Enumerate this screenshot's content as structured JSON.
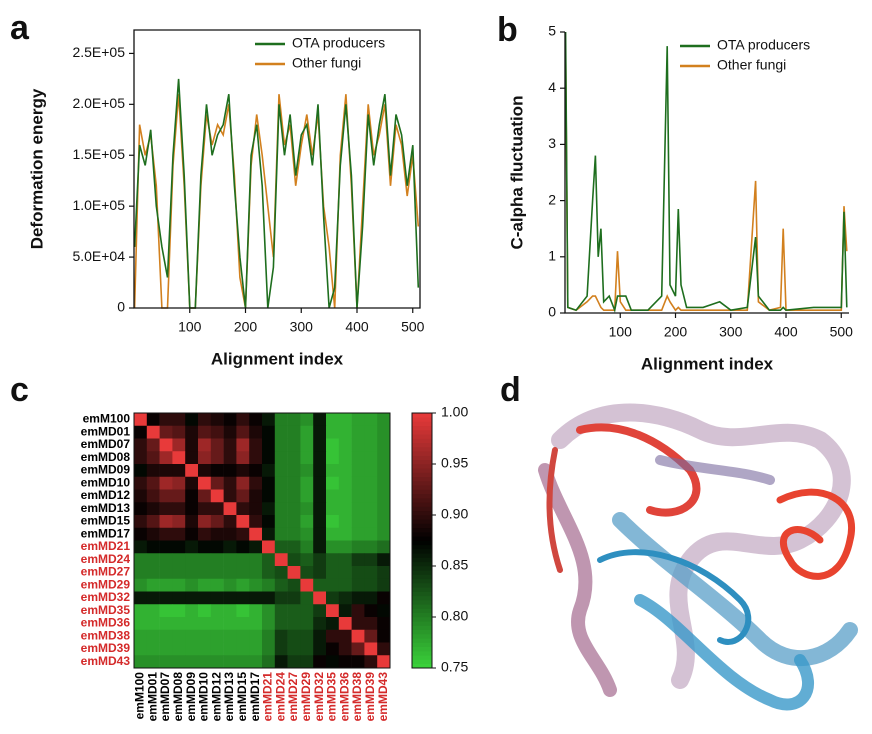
{
  "chart_data": [
    {
      "type": "line",
      "panel_label": "a",
      "ylabel": "Deformation energy",
      "xlabel": "Alignment index",
      "x": [
        1,
        10,
        20,
        30,
        40,
        50,
        60,
        70,
        80,
        90,
        100,
        110,
        120,
        130,
        140,
        150,
        160,
        170,
        180,
        190,
        200,
        210,
        220,
        230,
        240,
        250,
        260,
        270,
        280,
        290,
        300,
        310,
        320,
        330,
        340,
        350,
        360,
        370,
        380,
        390,
        400,
        410,
        420,
        430,
        440,
        450,
        460,
        470,
        480,
        490,
        500,
        510
      ],
      "series": [
        {
          "name": "OTA producers",
          "color": "#1e6e1e",
          "values": [
            60000,
            160000,
            140000,
            175000,
            100000,
            60000,
            30000,
            150000,
            225000,
            130000,
            0,
            0,
            130000,
            200000,
            150000,
            170000,
            180000,
            210000,
            120000,
            50000,
            0,
            150000,
            180000,
            120000,
            0,
            40000,
            200000,
            150000,
            190000,
            130000,
            170000,
            180000,
            140000,
            200000,
            90000,
            0,
            20000,
            140000,
            200000,
            130000,
            0,
            80000,
            190000,
            140000,
            180000,
            210000,
            130000,
            190000,
            170000,
            120000,
            160000,
            20000
          ]
        },
        {
          "name": "Other fungi",
          "color": "#d2801e",
          "values": [
            0,
            180000,
            150000,
            170000,
            120000,
            0,
            0,
            140000,
            210000,
            120000,
            0,
            0,
            120000,
            190000,
            160000,
            180000,
            170000,
            200000,
            130000,
            30000,
            0,
            140000,
            190000,
            150000,
            100000,
            50000,
            210000,
            160000,
            180000,
            120000,
            160000,
            190000,
            150000,
            190000,
            100000,
            60000,
            0,
            150000,
            210000,
            120000,
            0,
            100000,
            200000,
            150000,
            170000,
            200000,
            120000,
            180000,
            160000,
            110000,
            150000,
            80000
          ]
        }
      ],
      "xlim": [
        0,
        513
      ],
      "xticks": [
        100,
        200,
        300,
        400,
        500
      ],
      "ylim": [
        0,
        273000
      ],
      "yticks": [
        0,
        {
          "value": 50000,
          "label": "5.0E+04"
        },
        {
          "value": 100000,
          "label": "1.0E+05"
        },
        {
          "value": 150000,
          "label": "1.5E+05"
        },
        {
          "value": 200000,
          "label": "2.0E+05"
        },
        {
          "value": 250000,
          "label": "2.5E+05"
        }
      ],
      "legend": "top-right",
      "frame": true
    },
    {
      "type": "line",
      "panel_label": "b",
      "ylabel": "C-alpha fluctuation",
      "xlabel": "Alignment index",
      "x": [
        1,
        5,
        20,
        40,
        50,
        55,
        60,
        65,
        70,
        80,
        90,
        95,
        100,
        110,
        120,
        150,
        175,
        185,
        190,
        200,
        205,
        210,
        220,
        250,
        280,
        300,
        330,
        345,
        350,
        370,
        390,
        395,
        400,
        450,
        500,
        505,
        510
      ],
      "series": [
        {
          "name": "OTA producers",
          "color": "#1e6e1e",
          "values": [
            5,
            0.1,
            0.05,
            0.3,
            2.0,
            2.8,
            1.0,
            1.5,
            0.2,
            0.3,
            0.05,
            0.3,
            0.3,
            0.3,
            0.05,
            0.05,
            0.3,
            4.75,
            0.5,
            0.3,
            1.85,
            0.5,
            0.1,
            0.1,
            0.2,
            0.05,
            0.1,
            1.35,
            0.3,
            0.05,
            0.05,
            0.1,
            0.05,
            0.1,
            0.1,
            1.8,
            0.1
          ]
        },
        {
          "name": "Other fungi",
          "color": "#d2801e",
          "values": [
            4.7,
            0.1,
            0.05,
            0.2,
            0.3,
            0.3,
            0.2,
            0.1,
            0.05,
            0.05,
            0.05,
            1.1,
            0.2,
            0.05,
            0.05,
            0.05,
            0.05,
            0.3,
            0.2,
            0.05,
            0.1,
            0.05,
            0.05,
            0.05,
            0.05,
            0.05,
            0.05,
            2.35,
            0.2,
            0.05,
            0.1,
            1.5,
            0.05,
            0.05,
            0.05,
            1.9,
            1.1
          ]
        }
      ],
      "xlim": [
        0,
        514
      ],
      "xticks": [
        100,
        200,
        300,
        400,
        500
      ],
      "ylim": [
        0,
        5
      ],
      "yticks": [
        0,
        1,
        2,
        3,
        4,
        5
      ],
      "legend": "top-right",
      "frame": false
    },
    {
      "type": "heatmap",
      "panel_label": "c",
      "categories": [
        "emM100",
        "emMD01",
        "emMD07",
        "emMD08",
        "emMD09",
        "emMD10",
        "emMD12",
        "emMD13",
        "emMD15",
        "emMD17",
        "emMD21",
        "emMD24",
        "emMD27",
        "emMD29",
        "emMD32",
        "emMD35",
        "emMD36",
        "emMD38",
        "emMD39",
        "emMD43"
      ],
      "label_colors": [
        "#000000",
        "#000000",
        "#000000",
        "#000000",
        "#000000",
        "#000000",
        "#000000",
        "#000000",
        "#000000",
        "#000000",
        "#d42a2a",
        "#d42a2a",
        "#d42a2a",
        "#d42a2a",
        "#d42a2a",
        "#d42a2a",
        "#d42a2a",
        "#d42a2a",
        "#d42a2a",
        "#d42a2a"
      ],
      "values": [
        [
          1,
          0.88,
          0.9,
          0.9,
          0.87,
          0.9,
          0.89,
          0.88,
          0.9,
          0.88,
          0.86,
          0.8,
          0.8,
          0.79,
          0.86,
          0.77,
          0.77,
          0.78,
          0.78,
          0.79
        ],
        [
          0.88,
          1,
          0.93,
          0.92,
          0.89,
          0.92,
          0.91,
          0.89,
          0.92,
          0.89,
          0.87,
          0.8,
          0.8,
          0.78,
          0.86,
          0.77,
          0.77,
          0.78,
          0.78,
          0.79
        ],
        [
          0.9,
          0.93,
          1,
          0.96,
          0.89,
          0.96,
          0.93,
          0.9,
          0.96,
          0.9,
          0.87,
          0.8,
          0.8,
          0.78,
          0.86,
          0.76,
          0.77,
          0.78,
          0.78,
          0.79
        ],
        [
          0.9,
          0.92,
          0.96,
          1,
          0.89,
          0.95,
          0.93,
          0.9,
          0.95,
          0.9,
          0.87,
          0.8,
          0.8,
          0.78,
          0.86,
          0.76,
          0.77,
          0.78,
          0.78,
          0.79
        ],
        [
          0.87,
          0.89,
          0.89,
          0.89,
          1,
          0.89,
          0.88,
          0.88,
          0.89,
          0.88,
          0.86,
          0.8,
          0.8,
          0.79,
          0.86,
          0.77,
          0.77,
          0.78,
          0.78,
          0.79
        ],
        [
          0.9,
          0.92,
          0.96,
          0.95,
          0.89,
          1,
          0.93,
          0.9,
          0.95,
          0.9,
          0.87,
          0.8,
          0.8,
          0.78,
          0.86,
          0.76,
          0.77,
          0.78,
          0.78,
          0.79
        ],
        [
          0.89,
          0.91,
          0.93,
          0.93,
          0.88,
          0.93,
          1,
          0.9,
          0.93,
          0.89,
          0.87,
          0.8,
          0.8,
          0.78,
          0.86,
          0.77,
          0.77,
          0.78,
          0.78,
          0.79
        ],
        [
          0.88,
          0.89,
          0.9,
          0.9,
          0.88,
          0.9,
          0.9,
          1,
          0.9,
          0.89,
          0.86,
          0.8,
          0.8,
          0.79,
          0.86,
          0.77,
          0.77,
          0.78,
          0.78,
          0.79
        ],
        [
          0.9,
          0.92,
          0.96,
          0.95,
          0.89,
          0.95,
          0.93,
          0.9,
          1,
          0.9,
          0.87,
          0.8,
          0.8,
          0.78,
          0.86,
          0.76,
          0.77,
          0.78,
          0.78,
          0.79
        ],
        [
          0.88,
          0.89,
          0.9,
          0.9,
          0.88,
          0.9,
          0.89,
          0.89,
          0.9,
          1,
          0.86,
          0.8,
          0.8,
          0.79,
          0.86,
          0.77,
          0.77,
          0.78,
          0.78,
          0.79
        ],
        [
          0.86,
          0.87,
          0.87,
          0.87,
          0.86,
          0.87,
          0.87,
          0.86,
          0.87,
          0.86,
          1,
          0.82,
          0.82,
          0.8,
          0.86,
          0.79,
          0.79,
          0.8,
          0.8,
          0.81
        ],
        [
          0.8,
          0.8,
          0.8,
          0.8,
          0.8,
          0.8,
          0.8,
          0.8,
          0.8,
          0.8,
          0.82,
          1,
          0.83,
          0.82,
          0.84,
          0.82,
          0.82,
          0.84,
          0.84,
          0.86
        ],
        [
          0.8,
          0.8,
          0.8,
          0.8,
          0.8,
          0.8,
          0.8,
          0.8,
          0.8,
          0.8,
          0.82,
          0.83,
          1,
          0.83,
          0.84,
          0.82,
          0.82,
          0.83,
          0.83,
          0.84
        ],
        [
          0.79,
          0.78,
          0.78,
          0.78,
          0.79,
          0.78,
          0.78,
          0.79,
          0.78,
          0.79,
          0.8,
          0.82,
          0.83,
          1,
          0.82,
          0.82,
          0.82,
          0.83,
          0.83,
          0.84
        ],
        [
          0.86,
          0.86,
          0.86,
          0.86,
          0.86,
          0.86,
          0.86,
          0.86,
          0.86,
          0.86,
          0.86,
          0.84,
          0.84,
          0.82,
          1,
          0.84,
          0.85,
          0.86,
          0.86,
          0.88
        ],
        [
          0.77,
          0.77,
          0.76,
          0.76,
          0.77,
          0.76,
          0.77,
          0.77,
          0.76,
          0.77,
          0.79,
          0.82,
          0.82,
          0.82,
          0.84,
          1,
          0.86,
          0.9,
          0.88,
          0.87
        ],
        [
          0.77,
          0.77,
          0.77,
          0.77,
          0.77,
          0.77,
          0.77,
          0.77,
          0.77,
          0.77,
          0.79,
          0.82,
          0.82,
          0.82,
          0.85,
          0.86,
          1,
          0.9,
          0.9,
          0.88
        ],
        [
          0.78,
          0.78,
          0.78,
          0.78,
          0.78,
          0.78,
          0.78,
          0.78,
          0.78,
          0.78,
          0.8,
          0.84,
          0.83,
          0.83,
          0.86,
          0.9,
          0.9,
          1,
          0.93,
          0.88
        ],
        [
          0.78,
          0.78,
          0.78,
          0.78,
          0.78,
          0.78,
          0.78,
          0.78,
          0.78,
          0.78,
          0.8,
          0.84,
          0.83,
          0.83,
          0.86,
          0.88,
          0.9,
          0.93,
          1,
          0.9
        ],
        [
          0.79,
          0.79,
          0.79,
          0.79,
          0.79,
          0.79,
          0.79,
          0.79,
          0.79,
          0.79,
          0.81,
          0.86,
          0.84,
          0.84,
          0.88,
          0.87,
          0.88,
          0.88,
          0.9,
          1
        ]
      ],
      "zlim": [
        0.75,
        1
      ],
      "colors": [
        "#3bd43b",
        "#000000",
        "#e83a3a"
      ],
      "zticks": [
        {
          "value": 1,
          "label": "1.00"
        },
        0.95,
        {
          "value": 0.9,
          "label": "0.90"
        },
        0.85,
        {
          "value": 0.8,
          "label": "0.80"
        },
        0.75
      ]
    }
  ],
  "image_panel": {
    "label": "d"
  }
}
